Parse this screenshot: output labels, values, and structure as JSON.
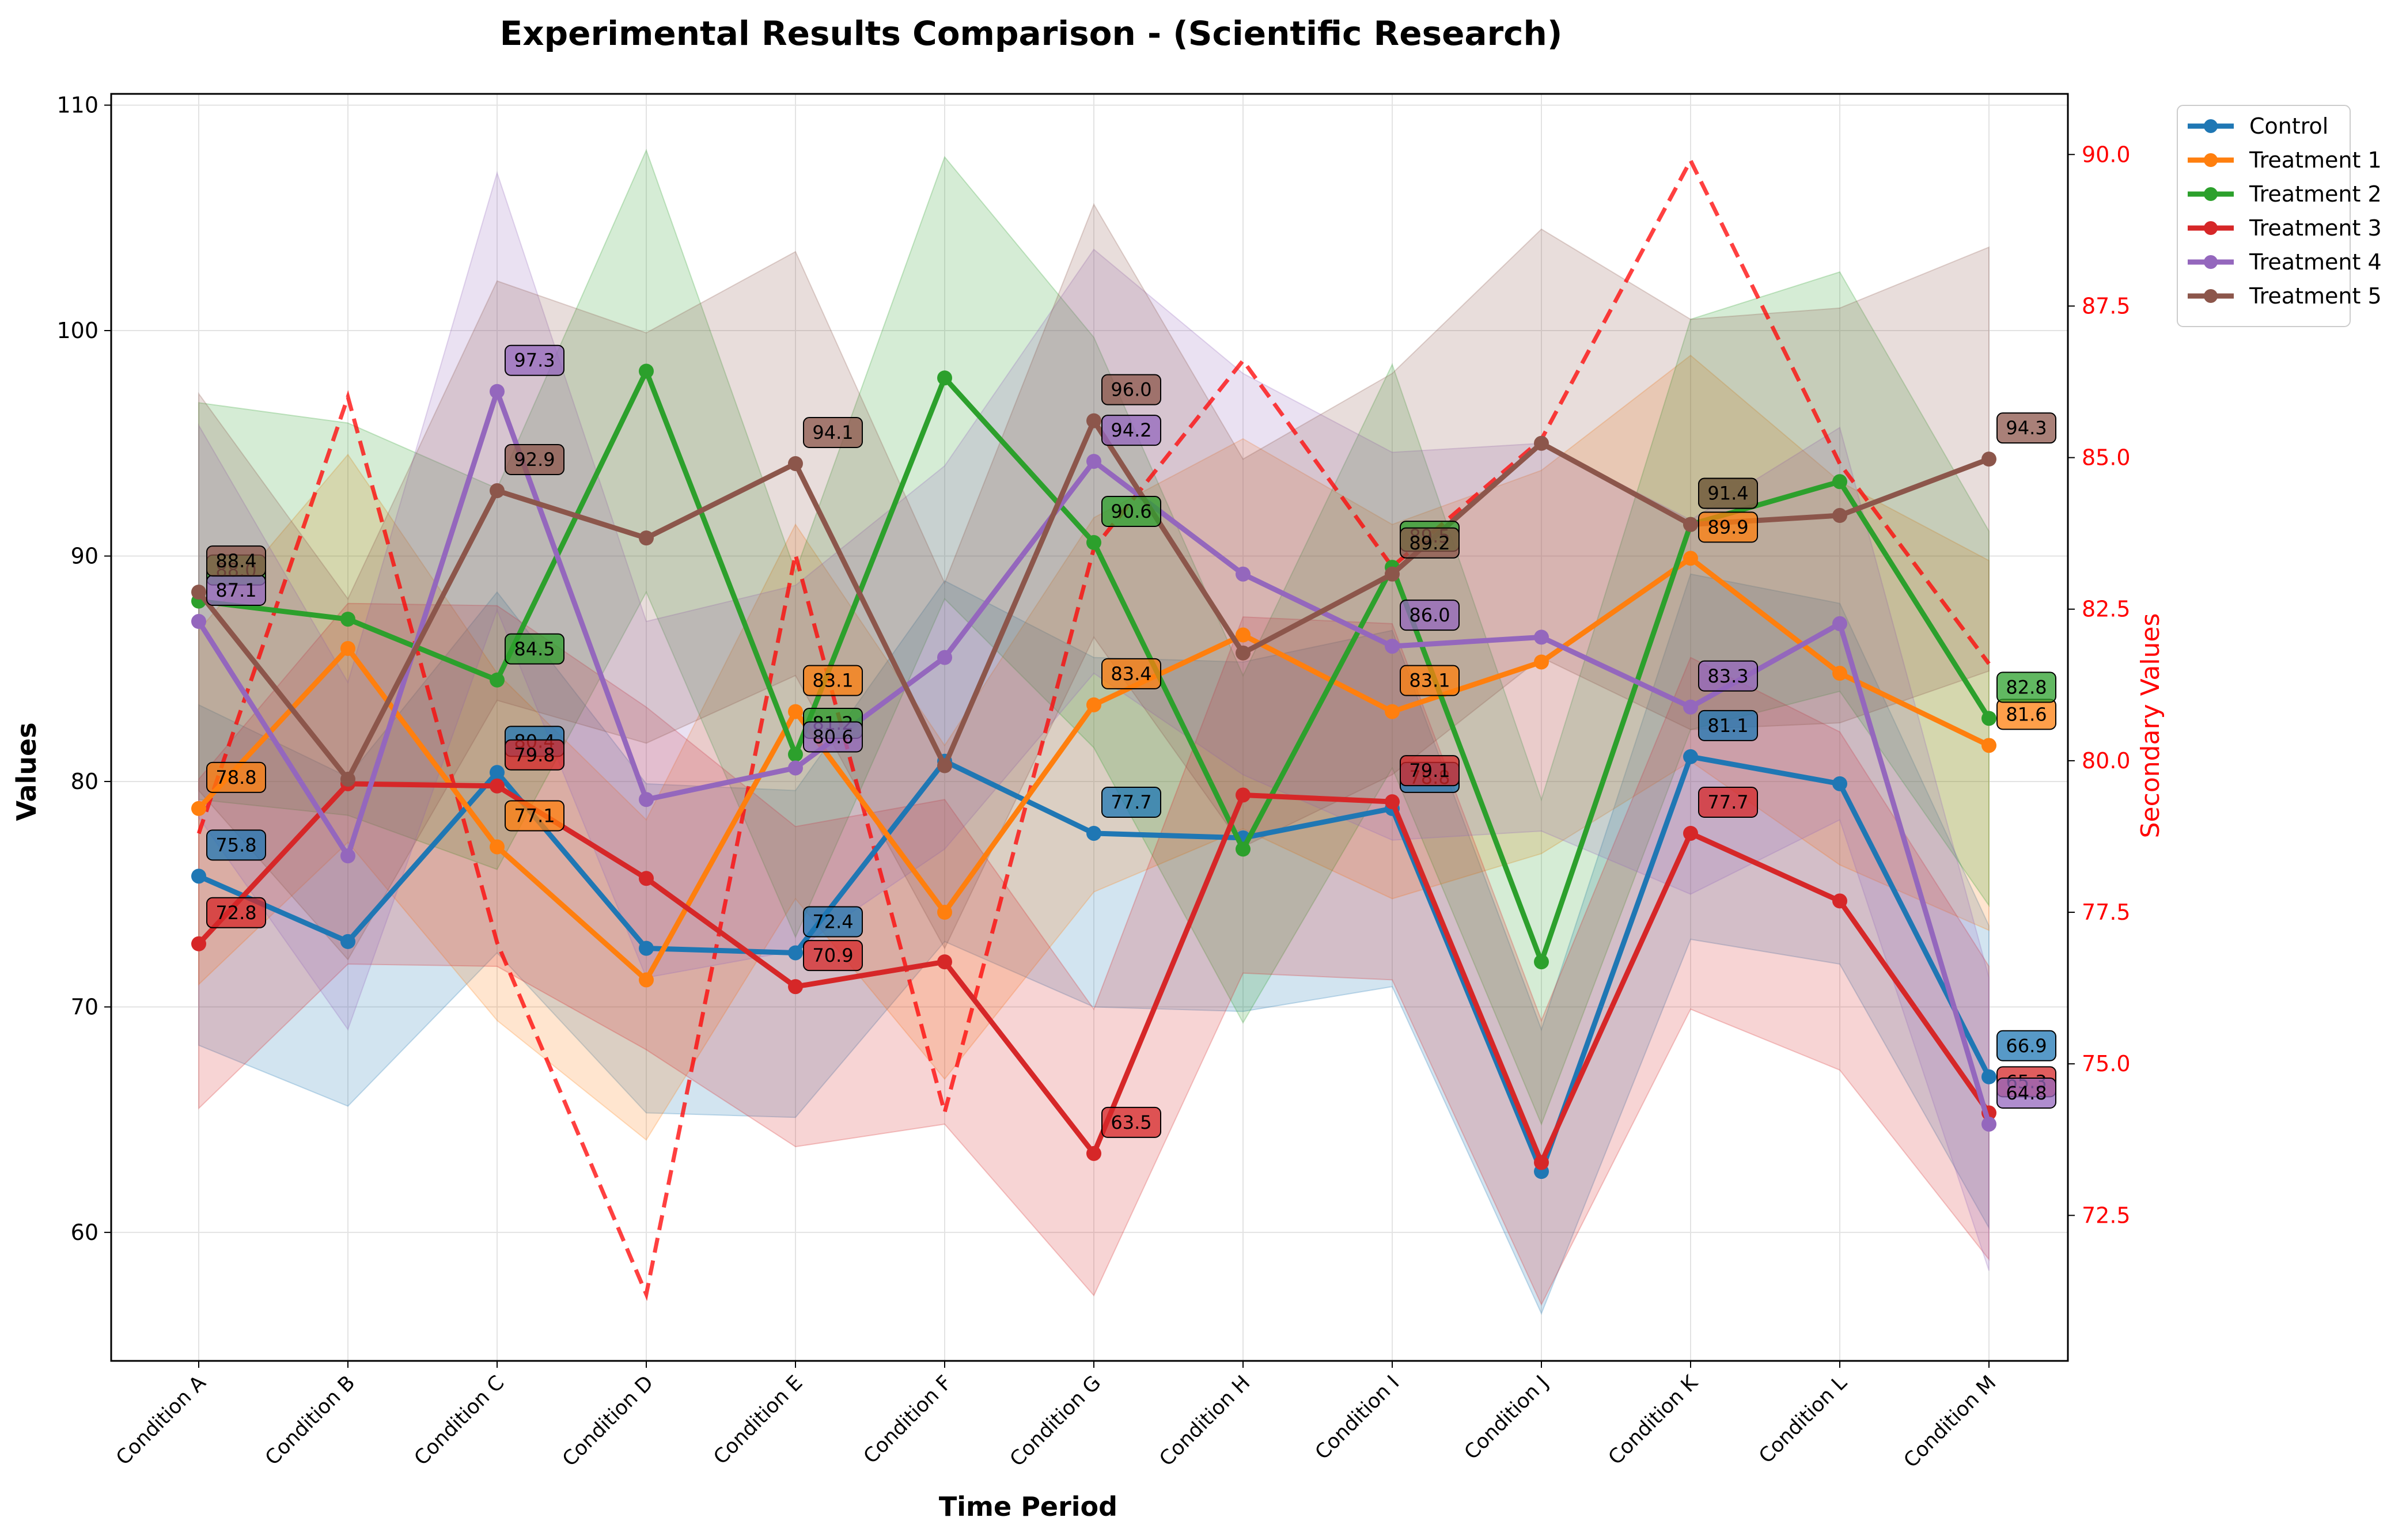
{
  "chart_data": {
    "type": "line",
    "title": "Experimental Results Comparison - (Scientific Research)",
    "xlabel": "Time Period",
    "ylabel": "Values",
    "ylabel_secondary": "Secondary Values",
    "ylim": [
      54.3,
      110.5
    ],
    "ylim_secondary": [
      70.1,
      91.0
    ],
    "yticks": [
      60,
      70,
      80,
      90,
      100,
      110
    ],
    "yticks_secondary": [
      72.5,
      75.0,
      77.5,
      80.0,
      82.5,
      85.0,
      87.5,
      90.0
    ],
    "grid": true,
    "legend_position": "upper-right-outside",
    "categories": [
      "Condition A",
      "Condition B",
      "Condition C",
      "Condition D",
      "Condition E",
      "Condition F",
      "Condition G",
      "Condition H",
      "Condition I",
      "Condition J",
      "Condition K",
      "Condition L",
      "Condition M"
    ],
    "series": [
      {
        "name": "Control",
        "color": "#1f77b4",
        "values": [
          75.8,
          72.9,
          80.4,
          72.6,
          72.4,
          80.9,
          77.7,
          77.5,
          78.8,
          62.7,
          81.1,
          79.9,
          66.9
        ],
        "lower": [
          68.3,
          65.6,
          72.4,
          65.3,
          65.1,
          72.9,
          70.0,
          69.8,
          70.9,
          56.4,
          73.0,
          71.9,
          60.2
        ],
        "upper": [
          83.4,
          80.2,
          88.4,
          79.9,
          79.6,
          88.9,
          85.5,
          85.3,
          86.7,
          69.0,
          89.2,
          87.9,
          73.6
        ],
        "labeled": [
          0,
          2,
          4,
          6,
          8,
          10,
          12
        ],
        "label_text": [
          "75.8",
          "80.4",
          "72.4",
          "77.7",
          "78.8",
          "81.1",
          "66.9"
        ]
      },
      {
        "name": "Treatment 1",
        "color": "#ff7f0e",
        "values": [
          78.8,
          85.9,
          77.1,
          71.2,
          83.1,
          74.2,
          83.4,
          86.5,
          83.1,
          85.3,
          89.9,
          84.8,
          81.6
        ],
        "lower": [
          71.0,
          77.3,
          69.4,
          64.1,
          74.8,
          66.8,
          75.1,
          77.9,
          74.8,
          76.8,
          80.9,
          76.3,
          73.4
        ],
        "upper": [
          86.7,
          94.5,
          84.8,
          78.3,
          91.4,
          81.6,
          91.7,
          95.2,
          91.4,
          93.8,
          98.9,
          93.3,
          89.8
        ],
        "labeled": [
          0,
          2,
          4,
          6,
          8,
          10,
          12
        ],
        "label_text": [
          "78.8",
          "77.1",
          "83.1",
          "83.4",
          "83.1",
          "89.9",
          "81.6"
        ]
      },
      {
        "name": "Treatment 2",
        "color": "#2ca02c",
        "values": [
          88.0,
          87.2,
          84.5,
          98.2,
          81.2,
          97.9,
          90.6,
          77.0,
          89.5,
          72.0,
          91.4,
          93.3,
          82.8
        ],
        "lower": [
          79.2,
          78.5,
          76.1,
          88.4,
          73.1,
          88.1,
          81.5,
          69.3,
          80.6,
          64.8,
          82.3,
          84.0,
          74.5
        ],
        "upper": [
          96.8,
          95.9,
          93.0,
          108.0,
          89.3,
          107.7,
          99.7,
          84.7,
          98.5,
          79.2,
          100.5,
          102.6,
          91.1
        ],
        "labeled": [
          0,
          2,
          4,
          6,
          8,
          10,
          12
        ],
        "label_text": [
          "88.0",
          "84.5",
          "81.2",
          "90.6",
          "89.5",
          "91.4",
          "82.8"
        ]
      },
      {
        "name": "Treatment 3",
        "color": "#d62728",
        "values": [
          72.8,
          79.9,
          79.8,
          75.7,
          70.9,
          72.0,
          63.5,
          79.4,
          79.1,
          63.1,
          77.7,
          74.7,
          65.3
        ],
        "lower": [
          65.5,
          71.9,
          71.8,
          68.1,
          63.8,
          64.8,
          57.2,
          71.5,
          71.2,
          56.8,
          69.9,
          67.2,
          58.8
        ],
        "upper": [
          80.1,
          87.9,
          87.8,
          83.3,
          78.0,
          79.2,
          69.9,
          87.3,
          87.0,
          69.4,
          85.5,
          82.2,
          71.8
        ],
        "labeled": [
          0,
          2,
          4,
          6,
          8,
          10,
          12
        ],
        "label_text": [
          "72.8",
          "79.8",
          "70.9",
          "63.5",
          "79.1",
          "77.7",
          "65.3"
        ]
      },
      {
        "name": "Treatment 4",
        "color": "#9467bd",
        "values": [
          87.1,
          76.7,
          97.3,
          79.2,
          80.6,
          85.5,
          94.2,
          89.2,
          86.0,
          86.4,
          83.3,
          87.0,
          64.8
        ],
        "lower": [
          78.4,
          69.0,
          87.6,
          71.3,
          72.5,
          77.0,
          84.8,
          80.3,
          77.4,
          77.8,
          75.0,
          78.3,
          58.3
        ],
        "upper": [
          95.8,
          84.4,
          107.0,
          87.1,
          88.7,
          94.0,
          103.6,
          98.1,
          94.6,
          95.0,
          91.6,
          95.7,
          71.3
        ],
        "labeled": [
          0,
          2,
          4,
          6,
          8,
          10,
          12
        ],
        "label_text": [
          "87.1",
          "97.3",
          "80.6",
          "94.2",
          "86.0",
          "83.3",
          "64.8"
        ]
      },
      {
        "name": "Treatment 5",
        "color": "#8c564b",
        "values": [
          88.4,
          80.1,
          92.9,
          90.8,
          94.1,
          80.7,
          96.0,
          85.7,
          89.2,
          95.0,
          91.4,
          91.8,
          94.3
        ],
        "lower": [
          79.6,
          72.1,
          83.6,
          81.7,
          84.7,
          72.6,
          86.4,
          77.1,
          80.3,
          85.5,
          82.3,
          82.6,
          84.9
        ],
        "upper": [
          97.2,
          88.1,
          102.2,
          99.9,
          103.5,
          88.8,
          105.6,
          94.3,
          98.1,
          104.5,
          100.5,
          101.0,
          103.7
        ],
        "labeled": [
          0,
          2,
          4,
          6,
          8,
          10,
          12
        ],
        "label_text": [
          "88.4",
          "92.9",
          "94.1",
          "96.0",
          "89.2",
          "91.4",
          "94.3"
        ]
      }
    ],
    "secondary_series": {
      "color": "#ff0000",
      "style": "dashed",
      "values": [
        78.8,
        86.0,
        77.0,
        71.2,
        83.4,
        74.2,
        83.5,
        86.6,
        83.2,
        85.3,
        89.9,
        84.9,
        81.6
      ]
    }
  }
}
